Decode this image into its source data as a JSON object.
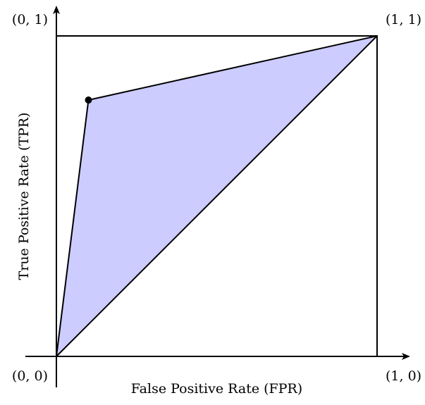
{
  "chart_data": {
    "type": "area",
    "title": "",
    "xlabel": "False Positive Rate (FPR)",
    "ylabel": "True Positive Rate (TPR)",
    "xlim": [
      0,
      1
    ],
    "ylim": [
      0,
      1
    ],
    "grid": false,
    "legend": "none",
    "roc_point": {
      "x": 0.1,
      "y": 0.8
    },
    "shaded_region": [
      {
        "x": 0,
        "y": 0
      },
      {
        "x": 0.1,
        "y": 0.8
      },
      {
        "x": 1,
        "y": 1
      }
    ],
    "curve": [
      {
        "x": 0,
        "y": 0
      },
      {
        "x": 0.1,
        "y": 0.8
      },
      {
        "x": 1,
        "y": 1
      }
    ],
    "diagonal": [
      {
        "x": 0,
        "y": 0
      },
      {
        "x": 1,
        "y": 1
      }
    ],
    "corner_labels": {
      "origin": "(0, 0)",
      "top_left": "(0, 1)",
      "top_right": "(1, 1)",
      "bottom_right": "(1, 0)"
    },
    "colors": {
      "fill": "#ccccff",
      "line": "#000000",
      "point": "#000000"
    }
  }
}
